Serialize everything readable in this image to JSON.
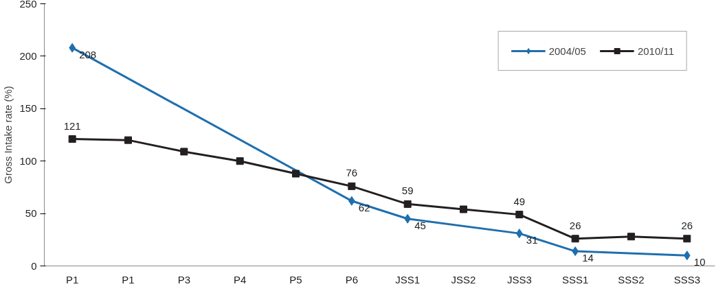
{
  "chart_data": {
    "type": "line",
    "ylabel": "Gross Intake rate (%)",
    "categories": [
      "P1",
      "P1",
      "P3",
      "P4",
      "P5",
      "P6",
      "JSS1",
      "JSS2",
      "JSS3",
      "SSS1",
      "SSS2",
      "SSS3"
    ],
    "series": [
      {
        "name": "2004/05",
        "color": "#1f6fae",
        "marker": "diamond",
        "values": [
          208,
          null,
          null,
          null,
          null,
          62,
          45,
          null,
          31,
          14,
          null,
          10
        ],
        "value_labels": [
          "208",
          null,
          null,
          null,
          null,
          "62",
          "45",
          null,
          "31",
          "14",
          null,
          "10"
        ]
      },
      {
        "name": "2010/11",
        "color": "#231f20",
        "marker": "square",
        "values": [
          121,
          120,
          109,
          100,
          88,
          76,
          59,
          54,
          49,
          26,
          28,
          26
        ],
        "value_labels": [
          "121",
          null,
          null,
          null,
          null,
          "76",
          "59",
          null,
          "49",
          "26",
          null,
          "26"
        ]
      }
    ],
    "ylim": [
      0,
      250
    ],
    "yticks": [
      0,
      50,
      100,
      150,
      200,
      250
    ],
    "grid": false,
    "legend": "top right"
  }
}
